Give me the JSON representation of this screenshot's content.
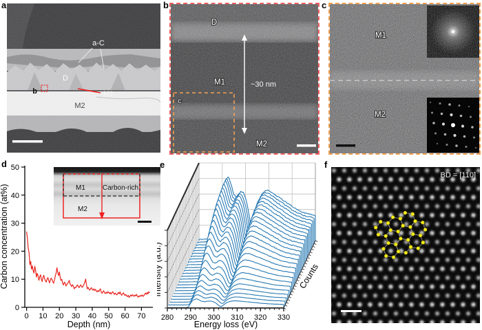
{
  "colors": {
    "frame_red": "#ef5f5f",
    "frame_orange": "#f0a052",
    "annotation_red": "#ee2222",
    "curve_red": "#e8231d",
    "spectra_blue": "#2678b2",
    "model_yellow": "#f4ea1a"
  },
  "panels": {
    "a": {
      "label": "a",
      "annotations": {
        "a_c": "a-C",
        "d": "D",
        "b_marker": "b",
        "m1": "M1",
        "m2": "M2"
      }
    },
    "b": {
      "label": "b",
      "annotations": {
        "d": "D",
        "m1": "M1",
        "m2": "M2",
        "thickness": "~30 nm",
        "c_box": "c"
      }
    },
    "c": {
      "label": "c",
      "annotations": {
        "m1": "M1",
        "m2": "M2"
      }
    },
    "d": {
      "label": "d",
      "inset": {
        "m1": "M1",
        "m2": "M2",
        "carbon_rich": "Carbon-rich"
      }
    },
    "e": {
      "label": "e"
    },
    "f": {
      "label": "f",
      "beam_direction": "BD = [110]"
    }
  },
  "chart_data": [
    {
      "type": "line",
      "panel": "d",
      "xlabel": "Depth (nm)",
      "ylabel": "Carbon concentration (at%)",
      "xlim": [
        0,
        75
      ],
      "ylim": [
        0,
        50
      ],
      "xticks": [
        0,
        10,
        20,
        30,
        40,
        50,
        60,
        70
      ],
      "yticks": [
        0,
        10,
        20,
        30,
        40,
        50
      ],
      "grid": false,
      "series": [
        {
          "name": "carbon-concentration",
          "color": "#e8231d",
          "x_start": 0,
          "x_step": 0.5,
          "y": [
            27.0,
            24.5,
            21.0,
            19.5,
            15.2,
            16.4,
            13.6,
            14.8,
            13.1,
            12.2,
            14.6,
            13.2,
            10.8,
            12.1,
            11.2,
            9.6,
            10.9,
            11.6,
            10.1,
            9.2,
            10.6,
            11.4,
            10.2,
            9.4,
            9.0,
            10.1,
            10.6,
            9.5,
            8.7,
            9.8,
            10.4,
            9.9,
            9.1,
            8.6,
            9.7,
            11.2,
            12.2,
            14.1,
            12.4,
            11.3,
            12.6,
            10.4,
            9.6,
            10.0,
            8.4,
            8.0,
            9.0,
            8.6,
            7.6,
            8.1,
            8.5,
            9.0,
            9.6,
            8.4,
            7.9,
            7.4,
            8.1,
            7.5,
            6.6,
            7.1,
            7.0,
            7.6,
            8.0,
            7.4,
            7.0,
            7.6,
            8.0,
            7.4,
            7.1,
            7.7,
            8.2,
            9.0,
            10.1,
            8.0,
            6.6,
            7.1,
            6.5,
            6.1,
            6.6,
            7.0,
            6.4,
            6.1,
            6.6,
            6.0,
            6.4,
            5.8,
            5.5,
            6.0,
            5.6,
            6.2,
            6.6,
            5.4,
            5.0,
            5.5,
            5.9,
            5.2,
            4.9,
            5.4,
            5.0,
            5.6,
            5.3,
            4.9,
            5.3,
            4.7,
            5.2,
            5.6,
            5.0,
            4.6,
            5.1,
            4.7,
            4.4,
            4.9,
            5.3,
            4.8,
            5.5,
            4.6,
            4.3,
            4.8,
            5.2,
            4.6,
            4.2,
            4.6,
            4.1,
            3.8,
            4.3,
            3.5,
            3.9,
            4.4,
            4.0,
            4.5,
            4.2,
            3.9,
            4.4,
            4.1,
            4.6,
            4.0,
            3.6,
            4.1,
            3.8,
            4.3,
            4.0,
            4.4,
            3.9,
            4.2,
            4.7,
            5.1,
            4.6,
            5.3,
            4.8,
            5.6,
            5.1
          ]
        }
      ]
    },
    {
      "type": "line",
      "subtype": "3d-waterfall",
      "panel": "e",
      "xlabel": "Energy loss (eV)",
      "ylabel": "Intensity (a.u.)",
      "zlabel": "Counts",
      "xlim": [
        280,
        330
      ],
      "xticks": [
        280,
        290,
        300,
        310,
        320,
        330
      ],
      "n_spectra": 25,
      "color": "#2678b2",
      "profile_x": [
        280,
        286,
        288,
        288.8,
        289.5,
        290.2,
        291,
        291.8,
        292.5,
        293.2,
        294,
        295,
        296,
        297,
        298,
        299,
        300,
        300.8,
        301.5,
        302.2,
        302.8,
        303.5,
        304.2,
        305,
        306,
        307,
        308,
        309,
        310,
        311.5,
        313,
        315,
        317,
        319,
        321,
        323,
        325,
        327,
        329,
        330
      ],
      "profile_y": [
        0.02,
        0.025,
        0.03,
        0.06,
        0.28,
        0.62,
        0.85,
        0.97,
        1.0,
        0.95,
        0.85,
        0.72,
        0.68,
        0.73,
        0.77,
        0.75,
        0.66,
        0.55,
        0.4,
        0.24,
        0.16,
        0.2,
        0.34,
        0.5,
        0.64,
        0.72,
        0.77,
        0.79,
        0.78,
        0.75,
        0.71,
        0.66,
        0.61,
        0.56,
        0.51,
        0.47,
        0.44,
        0.42,
        0.4,
        0.39
      ],
      "amplitudes": [
        0.14,
        0.16,
        0.18,
        0.21,
        0.25,
        0.3,
        0.36,
        0.43,
        0.5,
        0.57,
        0.63,
        0.69,
        0.74,
        0.79,
        0.83,
        0.87,
        0.9,
        0.93,
        0.95,
        0.97,
        0.98,
        0.99,
        1.0,
        0.99,
        0.98
      ]
    }
  ]
}
